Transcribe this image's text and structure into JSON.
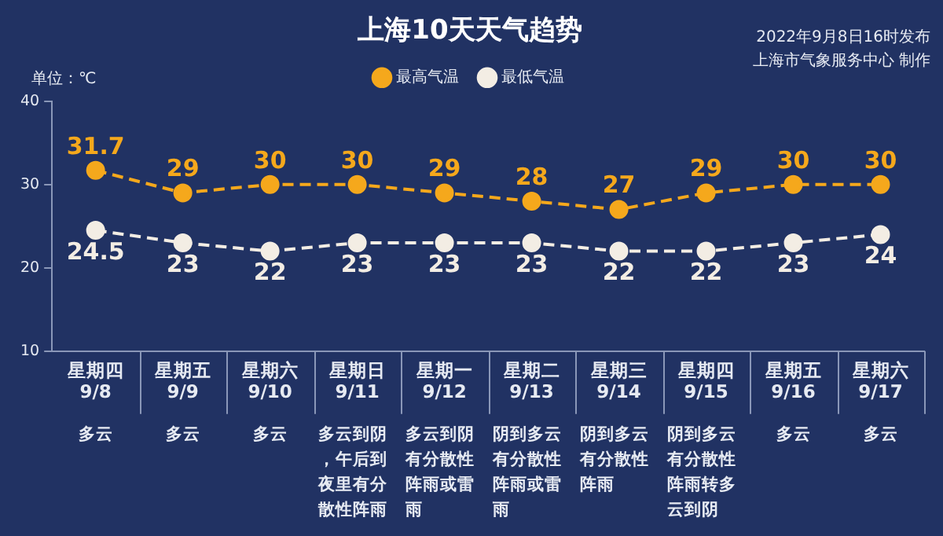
{
  "chart_data": {
    "type": "line",
    "title": "上海10天天气趋势",
    "ylabel": "单位：℃",
    "categories": [
      "星期四\n9/8",
      "星期五\n9/9",
      "星期六\n9/10",
      "星期日\n9/11",
      "星期一\n9/12",
      "星期二\n9/13",
      "星期三\n9/14",
      "星期四\n9/15",
      "星期五\n9/16",
      "星期六\n9/17"
    ],
    "series": [
      {
        "name": "最高气温",
        "color": "#f5a81c",
        "values": [
          31.7,
          29,
          30,
          30,
          29,
          28,
          27,
          29,
          30,
          30
        ]
      },
      {
        "name": "最低气温",
        "color": "#f3ede4",
        "values": [
          24.5,
          23,
          22,
          23,
          23,
          23,
          22,
          22,
          23,
          24
        ]
      }
    ],
    "ylim": [
      10,
      40
    ],
    "yticks": [
      10,
      20,
      30,
      40
    ],
    "grid": false,
    "legend": "top",
    "marker": "circle",
    "line_style": "dashed",
    "data_labels": true,
    "annotations": [
      "2022年9月8日16时发布",
      "上海市气象服务中心 制作",
      "多云",
      "多云",
      "多云",
      "多云到阴，午后到夜里有分散性阵雨",
      "多云到阴有分散性阵雨或雷雨",
      "阴到多云有分散性阵雨或雷雨",
      "阴到多云有分散性阵雨",
      "阴到多云有分散性阵雨转多云到阴",
      "多云",
      "多云"
    ]
  }
}
